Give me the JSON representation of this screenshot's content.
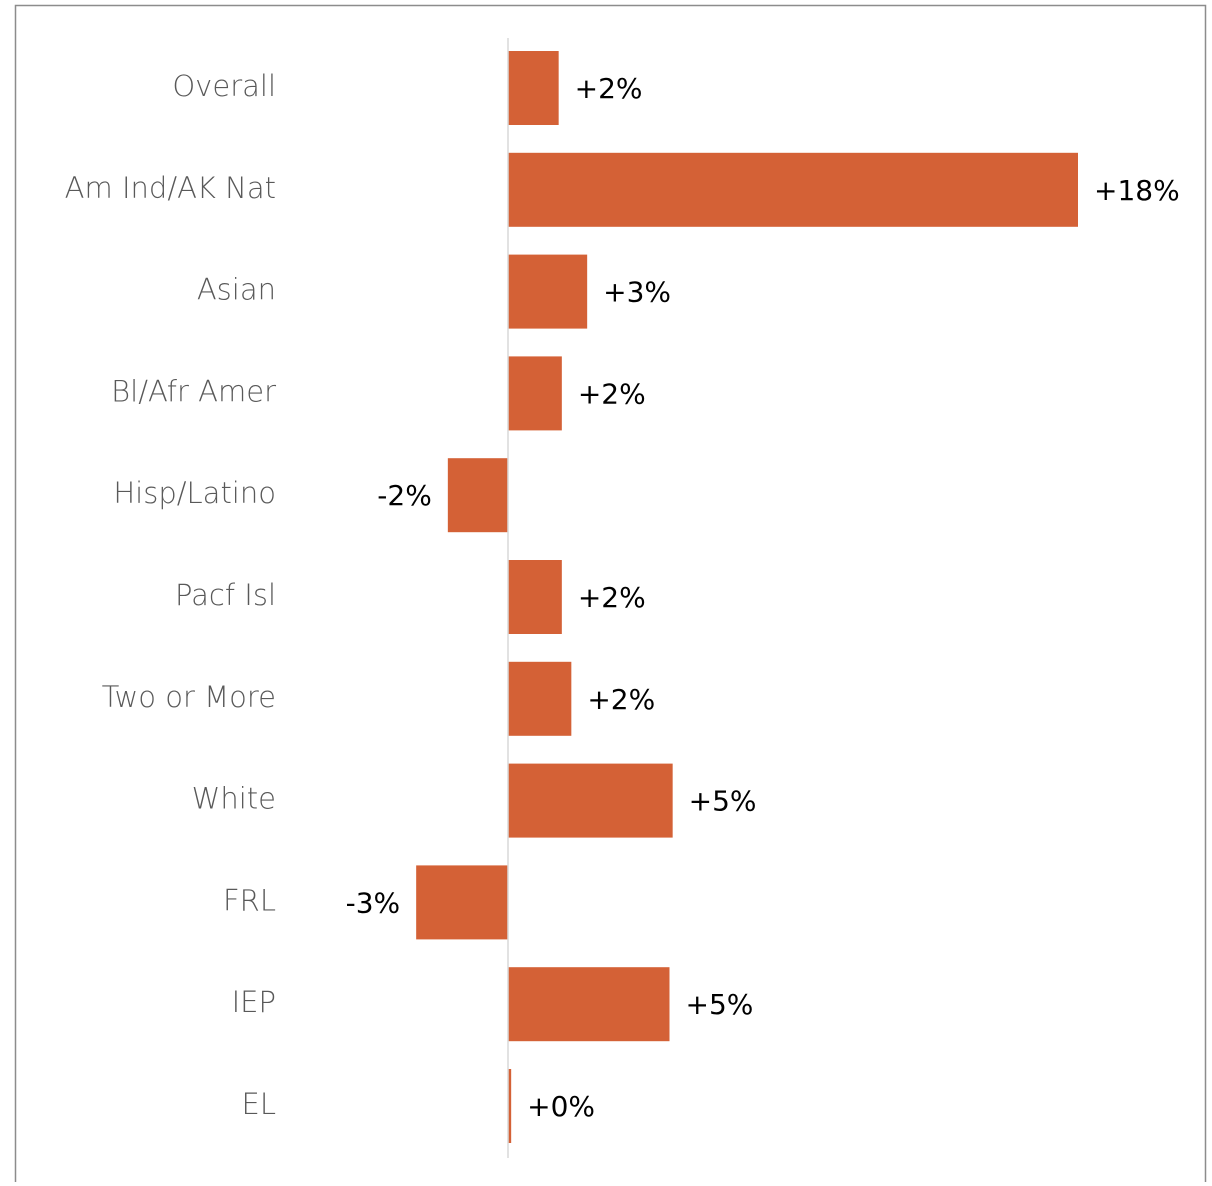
{
  "chart_data": {
    "type": "hbar",
    "categories": [
      "Overall",
      "Am Ind/AK Nat",
      "Asian",
      "Bl/Afr Amer",
      "Hisp/Latino",
      "Pacf Isl",
      "Two or More",
      "White",
      "FRL",
      "IEP",
      "EL"
    ],
    "values": [
      1.6,
      18.0,
      2.5,
      1.7,
      -1.9,
      1.7,
      2.0,
      5.2,
      -2.9,
      5.1,
      0.1
    ],
    "value_labels": [
      "+2%",
      "+18%",
      "+3%",
      "+2%",
      "-2%",
      "+2%",
      "+2%",
      "+5%",
      "-3%",
      "+5%",
      "+0%"
    ],
    "color": "#d46136",
    "xlim": [
      -6,
      20
    ]
  }
}
